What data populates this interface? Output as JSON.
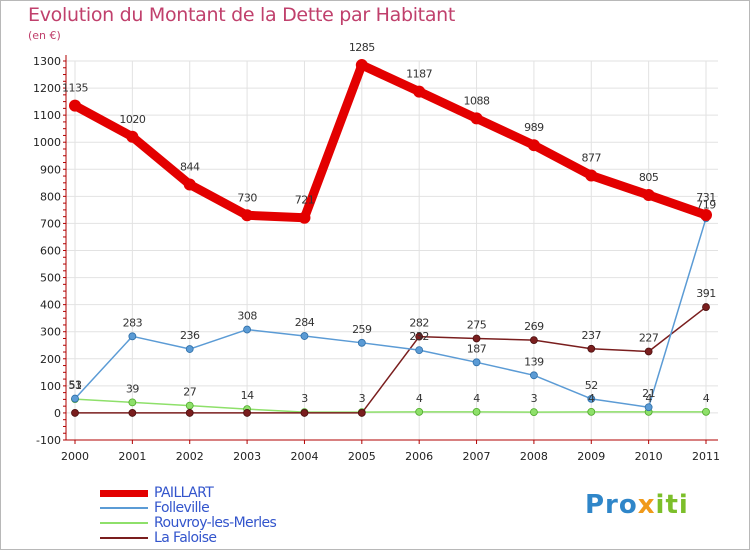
{
  "title": "Evolution du Montant de la Dette par Habitant",
  "unit": "(en €)",
  "logo": {
    "part1": "Pro",
    "part2": "x",
    "part3": "iti"
  },
  "colors": {
    "PAILLART": "#e30000",
    "Folleville": "#5b9bd5",
    "Rouvroy-les-Merles": "#8ee06a",
    "La Faloise": "#7a1e1e",
    "axis": "#b00000",
    "grid": "#e2e2e2",
    "title": "#c0406c"
  },
  "chart_data": {
    "type": "line",
    "title": "Evolution du Montant de la Dette par Habitant",
    "ylabel": "(en €)",
    "x": [
      "2000",
      "2001",
      "2002",
      "2003",
      "2004",
      "2005",
      "2006",
      "2007",
      "2008",
      "2009",
      "2010",
      "2011"
    ],
    "ylim": [
      -100,
      1300
    ],
    "yticks": [
      -100,
      0,
      100,
      200,
      300,
      400,
      500,
      600,
      700,
      800,
      900,
      1000,
      1100,
      1200,
      1300
    ],
    "grid": true,
    "legend": "bottom-left",
    "series": [
      {
        "name": "PAILLART",
        "values": [
          1135,
          1020,
          844,
          730,
          721,
          1285,
          1187,
          1088,
          989,
          877,
          805,
          731
        ],
        "labels": [
          "1135",
          "1020",
          "844",
          "730",
          "721",
          "1285",
          "1187",
          "1088",
          "989",
          "877",
          "805",
          "731"
        ]
      },
      {
        "name": "Folleville",
        "values": [
          53,
          283,
          236,
          308,
          284,
          259,
          232,
          187,
          139,
          52,
          21,
          719
        ],
        "labels": [
          "53",
          "283",
          "236",
          "308",
          "284",
          "259",
          "232",
          "187",
          "139",
          "52",
          "21",
          "719"
        ]
      },
      {
        "name": "Rouvroy-les-Merles",
        "values": [
          51,
          39,
          27,
          14,
          3,
          3,
          4,
          4,
          3,
          4,
          4,
          4
        ],
        "labels": [
          "51",
          "39",
          "27",
          "14",
          "3",
          "3",
          "4",
          "4",
          "3",
          "4",
          "4",
          "4"
        ]
      },
      {
        "name": "La Faloise",
        "values": [
          0,
          0,
          0,
          0,
          0,
          0,
          282,
          275,
          269,
          237,
          227,
          391
        ],
        "labels": [
          "",
          "",
          "",
          "",
          "",
          "",
          "282",
          "275",
          "269",
          "237",
          "227",
          "391"
        ]
      }
    ]
  }
}
